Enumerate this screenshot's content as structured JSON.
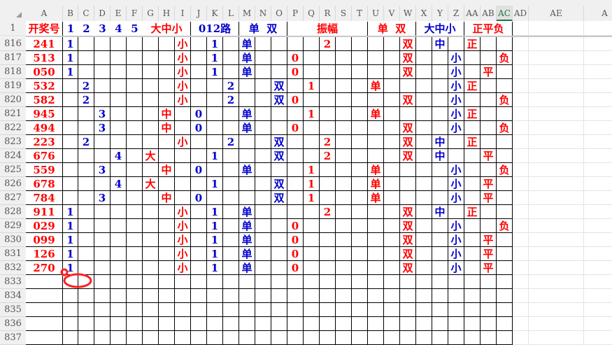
{
  "columns": [
    "A",
    "B",
    "C",
    "D",
    "E",
    "F",
    "G",
    "H",
    "I",
    "J",
    "K",
    "L",
    "M",
    "N",
    "O",
    "P",
    "Q",
    "R",
    "S",
    "T",
    "U",
    "V",
    "W",
    "X",
    "Y",
    "Z",
    "AA",
    "AB",
    "AC",
    "AD",
    "AE",
    "A"
  ],
  "selected_column": "AC",
  "colors": {
    "red": "#ff0000",
    "blue": "#0000cc",
    "selected": "#217346"
  },
  "header_row": {
    "row_number": "1",
    "groups": [
      {
        "label": "开奖号",
        "from": "A",
        "to": "A",
        "color": "red"
      },
      {
        "label": "1",
        "from": "B",
        "to": "B",
        "color": "blue"
      },
      {
        "label": "2",
        "from": "C",
        "to": "C",
        "color": "blue"
      },
      {
        "label": "3",
        "from": "D",
        "to": "D",
        "color": "blue"
      },
      {
        "label": "4",
        "from": "E",
        "to": "E",
        "color": "blue"
      },
      {
        "label": "5",
        "from": "F",
        "to": "F",
        "color": "blue"
      },
      {
        "label": "大中小",
        "from": "G",
        "to": "I",
        "color": "red"
      },
      {
        "label": "012路",
        "from": "J",
        "to": "L",
        "color": "blue"
      },
      {
        "label": "单  双",
        "from": "M",
        "to": "O",
        "color": "blue"
      },
      {
        "label": "振幅",
        "from": "P",
        "to": "T",
        "color": "red"
      },
      {
        "label": "单  双",
        "from": "U",
        "to": "W",
        "color": "red"
      },
      {
        "label": "大中小",
        "from": "X",
        "to": "Z",
        "color": "blue"
      },
      {
        "label": "正平负",
        "from": "AA",
        "to": "AC",
        "color": "red"
      }
    ]
  },
  "rows": [
    {
      "n": "816",
      "c": {
        "A": "241",
        "B": "1",
        "I": "小",
        "K": "1",
        "M": "单",
        "R": "2",
        "W": "双",
        "Y": "中",
        "AA": "正"
      }
    },
    {
      "n": "817",
      "c": {
        "A": "513",
        "B": "1",
        "I": "小",
        "K": "1",
        "M": "单",
        "P": "0",
        "W": "双",
        "Z": "小",
        "AC": "负"
      }
    },
    {
      "n": "818",
      "c": {
        "A": "050",
        "B": "1",
        "I": "小",
        "K": "1",
        "M": "单",
        "P": "0",
        "W": "双",
        "Z": "小",
        "AB": "平"
      }
    },
    {
      "n": "819",
      "c": {
        "A": "532",
        "C": "2",
        "I": "小",
        "L": "2",
        "O": "双",
        "Q": "1",
        "U": "单",
        "Z": "小",
        "AA": "正"
      }
    },
    {
      "n": "820",
      "c": {
        "A": "582",
        "C": "2",
        "I": "小",
        "L": "2",
        "O": "双",
        "P": "0",
        "W": "双",
        "Z": "小",
        "AC": "负"
      }
    },
    {
      "n": "821",
      "c": {
        "A": "945",
        "D": "3",
        "H": "中",
        "J": "0",
        "M": "单",
        "Q": "1",
        "U": "单",
        "Z": "小",
        "AA": "正"
      }
    },
    {
      "n": "822",
      "c": {
        "A": "494",
        "D": "3",
        "H": "中",
        "J": "0",
        "M": "单",
        "P": "0",
        "W": "双",
        "Z": "小",
        "AC": "负"
      }
    },
    {
      "n": "823",
      "c": {
        "A": "223",
        "C": "2",
        "I": "小",
        "L": "2",
        "O": "双",
        "R": "2",
        "W": "双",
        "Y": "中",
        "AA": "正"
      }
    },
    {
      "n": "824",
      "c": {
        "A": "676",
        "E": "4",
        "G": "大",
        "K": "1",
        "O": "双",
        "R": "2",
        "W": "双",
        "Y": "中",
        "AB": "平"
      }
    },
    {
      "n": "825",
      "c": {
        "A": "559",
        "D": "3",
        "H": "中",
        "J": "0",
        "M": "单",
        "Q": "1",
        "U": "单",
        "Z": "小",
        "AC": "负"
      }
    },
    {
      "n": "826",
      "c": {
        "A": "678",
        "E": "4",
        "G": "大",
        "K": "1",
        "O": "双",
        "Q": "1",
        "U": "单",
        "Z": "小",
        "AB": "平"
      }
    },
    {
      "n": "827",
      "c": {
        "A": "784",
        "D": "3",
        "H": "中",
        "J": "0",
        "O": "双",
        "Q": "1",
        "U": "单",
        "Z": "小",
        "AB": "平"
      }
    },
    {
      "n": "828",
      "c": {
        "A": "911",
        "B": "1",
        "I": "小",
        "K": "1",
        "M": "单",
        "R": "2",
        "W": "双",
        "Y": "中",
        "AA": "正"
      }
    },
    {
      "n": "829",
      "c": {
        "A": "029",
        "B": "1",
        "I": "小",
        "K": "1",
        "M": "单",
        "P": "0",
        "W": "双",
        "Z": "小",
        "AC": "负"
      }
    },
    {
      "n": "830",
      "c": {
        "A": "099",
        "B": "1",
        "I": "小",
        "K": "1",
        "M": "单",
        "P": "0",
        "W": "双",
        "Z": "小",
        "AB": "平"
      }
    },
    {
      "n": "831",
      "c": {
        "A": "126",
        "B": "1",
        "I": "小",
        "K": "1",
        "M": "单",
        "P": "0",
        "W": "双",
        "Z": "小",
        "AB": "平"
      }
    },
    {
      "n": "832",
      "c": {
        "A": "270",
        "B": "1",
        "I": "小",
        "K": "1",
        "M": "单",
        "P": "0",
        "W": "双",
        "Z": "小",
        "AB": "平"
      }
    },
    {
      "n": "833",
      "c": {}
    },
    {
      "n": "834",
      "c": {}
    },
    {
      "n": "835",
      "c": {}
    },
    {
      "n": "836",
      "c": {}
    },
    {
      "n": "837",
      "c": {}
    }
  ],
  "annotation": {
    "shape": "red-circle",
    "color": "#ff2020"
  }
}
